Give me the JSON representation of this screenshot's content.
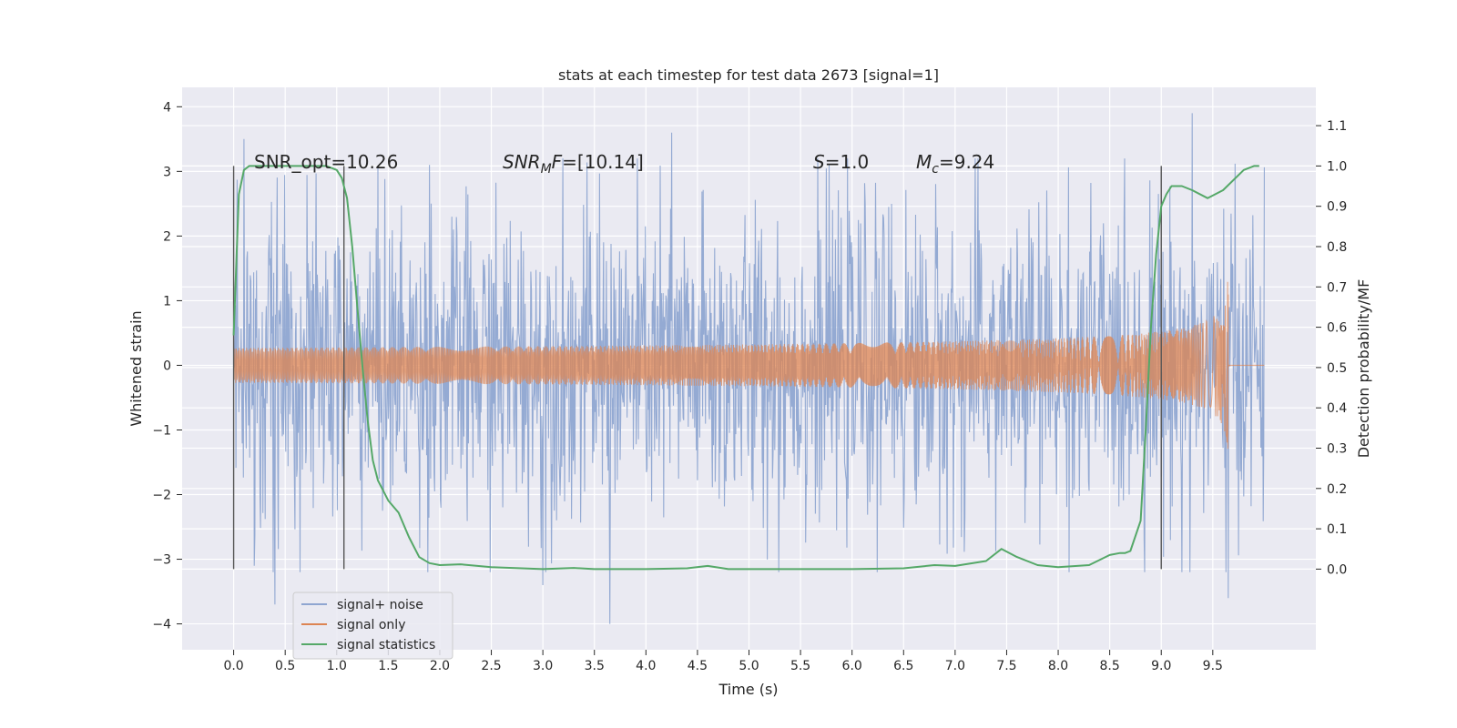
{
  "chart_data": {
    "type": "line",
    "title": "stats at each timestep for test data 2673 [signal=1]",
    "xlabel": "Time (s)",
    "ylabel": "Whitened strain",
    "y2label": "Detection probability/MF",
    "xlim": [
      -0.5,
      10.5
    ],
    "ylim": [
      -4.4,
      4.3
    ],
    "y2lim": [
      -0.2,
      1.195
    ],
    "x_ticks": [
      "0.0",
      "0.5",
      "1.0",
      "1.5",
      "2.0",
      "2.5",
      "3.0",
      "3.5",
      "4.0",
      "4.5",
      "5.0",
      "5.5",
      "6.0",
      "6.5",
      "7.0",
      "7.5",
      "8.0",
      "8.5",
      "9.0",
      "9.5"
    ],
    "y_ticks": [
      "4",
      "3",
      "2",
      "1",
      "0",
      "−1",
      "−2",
      "−3",
      "−4"
    ],
    "y2_ticks": [
      "1.1",
      "1.0",
      "0.9",
      "0.8",
      "0.7",
      "0.6",
      "0.5",
      "0.4",
      "0.3",
      "0.2",
      "0.1",
      "0.0"
    ],
    "grid": true,
    "legend": "lower-left",
    "colors": {
      "noise": "#8fa6d1",
      "signal": "#dd8452",
      "stats": "#55a868",
      "vlines": "#555555",
      "plot_bg": "#eaeaf2"
    },
    "annotations": {
      "snr_opt": "SNR_opt=10.26",
      "snr_mf_prefix": "SNR",
      "snr_mf_sub": "M",
      "snr_mf_suffix": "F",
      "snr_mf_value": "=[10.14]",
      "s_var": "S",
      "s_value": "=1.0",
      "mc_var": "M",
      "mc_sub": "c",
      "mc_value": "=9.24"
    },
    "vertical_lines": [
      0.0,
      1.07,
      9.0
    ],
    "series": [
      {
        "name": "signal+ noise",
        "t_start": 0.0,
        "t_end": 10.0,
        "amplitude_envelope": 2.3,
        "peaks": [
          {
            "x": 0.1,
            "y": 3.5
          },
          {
            "x": 0.2,
            "y": -3.1
          },
          {
            "x": 0.4,
            "y": -3.7
          },
          {
            "x": 1.9,
            "y": 3.1
          },
          {
            "x": 3.0,
            "y": -3.4
          },
          {
            "x": 3.65,
            "y": -4.0
          },
          {
            "x": 4.25,
            "y": 3.6
          },
          {
            "x": 9.3,
            "y": 3.9
          },
          {
            "x": 9.65,
            "y": -3.6
          }
        ]
      },
      {
        "name": "signal only",
        "t_start": 0.0,
        "t_end": 9.65,
        "peak_amplitude": 1.6
      },
      {
        "name": "signal statistics",
        "x": [
          0.0,
          0.05,
          0.1,
          0.15,
          0.2,
          0.3,
          0.5,
          0.7,
          0.9,
          1.0,
          1.05,
          1.1,
          1.15,
          1.2,
          1.25,
          1.3,
          1.35,
          1.4,
          1.5,
          1.6,
          1.7,
          1.8,
          1.9,
          2.0,
          2.2,
          2.5,
          3.0,
          3.3,
          3.5,
          4.0,
          4.4,
          4.6,
          4.8,
          5.0,
          5.5,
          6.0,
          6.5,
          6.8,
          7.0,
          7.3,
          7.45,
          7.6,
          7.8,
          8.0,
          8.3,
          8.5,
          8.6,
          8.65,
          8.7,
          8.8,
          8.85,
          8.9,
          8.95,
          9.0,
          9.05,
          9.1,
          9.2,
          9.3,
          9.45,
          9.6,
          9.8,
          9.9,
          9.95
        ],
        "y": [
          0.58,
          0.93,
          0.99,
          1.0,
          1.0,
          1.0,
          1.0,
          1.0,
          1.0,
          0.99,
          0.97,
          0.92,
          0.8,
          0.65,
          0.5,
          0.37,
          0.27,
          0.22,
          0.17,
          0.14,
          0.08,
          0.03,
          0.015,
          0.01,
          0.012,
          0.005,
          0.0,
          0.003,
          0.0,
          0.0,
          0.002,
          0.008,
          0.0,
          0.0,
          0.0,
          0.0,
          0.002,
          0.01,
          0.008,
          0.02,
          0.05,
          0.03,
          0.01,
          0.005,
          0.01,
          0.035,
          0.04,
          0.04,
          0.045,
          0.12,
          0.35,
          0.6,
          0.78,
          0.9,
          0.93,
          0.95,
          0.95,
          0.94,
          0.92,
          0.94,
          0.99,
          1.0,
          1.0
        ]
      }
    ]
  }
}
